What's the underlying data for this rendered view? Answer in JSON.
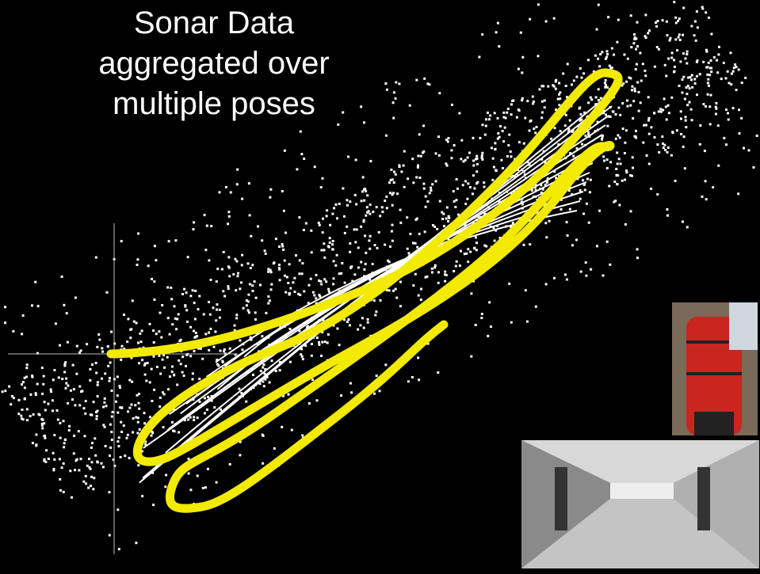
{
  "slide": {
    "title_lines": [
      "Sonar Data",
      "aggregated over",
      "multiple poses"
    ]
  }
}
